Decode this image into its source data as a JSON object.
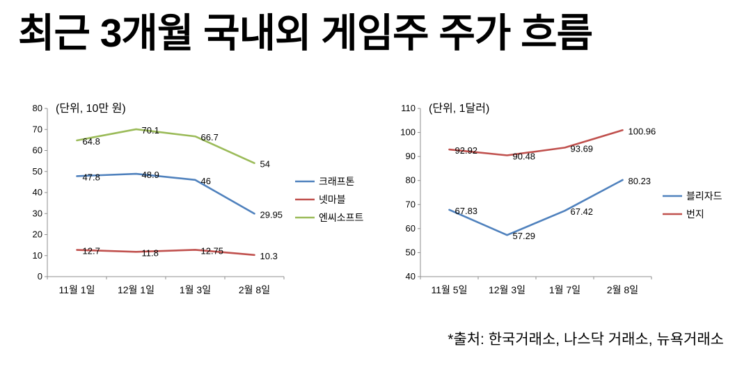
{
  "title": "최근 3개월 국내외 게임주 주가 흐름",
  "footer": "*출처: 한국거래소, 나스닥 거래소, 뉴욕거래소",
  "colors": {
    "blue": "#4F81BD",
    "red": "#C0504D",
    "green": "#9BBB59",
    "axis": "#8C8C8C",
    "text": "#000000"
  },
  "chart_data": [
    {
      "type": "line",
      "unit_label": "(단위, 10만 원)",
      "categories": [
        "11월 1일",
        "12월 1일",
        "1월 3일",
        "2월 8일"
      ],
      "series": [
        {
          "name": "크래프톤",
          "color": "#4F81BD",
          "values": [
            47.8,
            48.9,
            46,
            29.95
          ]
        },
        {
          "name": "넷마블",
          "color": "#C0504D",
          "values": [
            12.7,
            11.8,
            12.75,
            10.3
          ]
        },
        {
          "name": "엔씨소프트",
          "color": "#9BBB59",
          "values": [
            64.8,
            70.1,
            66.7,
            54
          ]
        }
      ],
      "ylim": [
        0,
        80
      ],
      "ytick_step": 10,
      "grid": false,
      "legend_position": "right",
      "data_labels": true
    },
    {
      "type": "line",
      "unit_label": "(단위, 1달러)",
      "categories": [
        "11월 5일",
        "12월 3일",
        "1월 7일",
        "2월 8일"
      ],
      "series": [
        {
          "name": "블리자드",
          "color": "#4F81BD",
          "values": [
            67.83,
            57.29,
            67.42,
            80.23
          ]
        },
        {
          "name": "번지",
          "color": "#C0504D",
          "values": [
            92.92,
            90.48,
            93.69,
            100.96
          ]
        }
      ],
      "ylim": [
        40,
        110
      ],
      "ytick_step": 10,
      "grid": false,
      "legend_position": "right",
      "data_labels": true
    }
  ]
}
